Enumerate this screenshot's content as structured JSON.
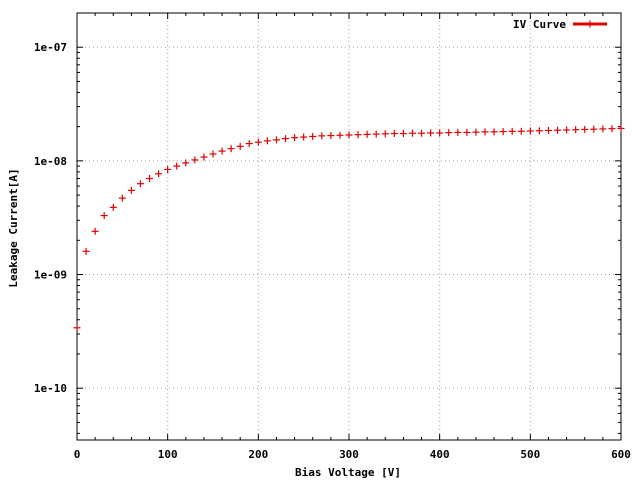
{
  "chart_data": {
    "type": "scatter",
    "title": "",
    "xlabel": "Bias Voltage [V]",
    "ylabel": "Leakage Current[A]",
    "xlim": [
      0,
      600
    ],
    "ylim": [
      3.5e-11,
      2e-07
    ],
    "yscale": "log",
    "grid": true,
    "legend_position": "top-right",
    "x_ticks": [
      0,
      100,
      200,
      300,
      400,
      500,
      600
    ],
    "x_tick_labels": [
      "0",
      "100",
      "200",
      "300",
      "400",
      "500",
      "600"
    ],
    "y_ticks": [
      1e-10,
      1e-09,
      1e-08,
      1e-07
    ],
    "y_tick_labels": [
      "1e-10",
      "1e-09",
      "1e-08",
      "1e-07"
    ],
    "series": [
      {
        "name": "IV Curve",
        "color": "#e00000",
        "marker": "plus",
        "x": [
          0,
          10,
          20,
          30,
          40,
          50,
          60,
          70,
          80,
          90,
          100,
          110,
          120,
          130,
          140,
          150,
          160,
          170,
          180,
          190,
          200,
          210,
          220,
          230,
          240,
          250,
          260,
          270,
          280,
          290,
          300,
          310,
          320,
          330,
          340,
          350,
          360,
          370,
          380,
          390,
          400,
          410,
          420,
          430,
          440,
          450,
          460,
          470,
          480,
          490,
          500,
          510,
          520,
          530,
          540,
          550,
          560,
          570,
          580,
          590,
          600
        ],
        "y": [
          3.4e-10,
          1.6e-09,
          2.4e-09,
          3.3e-09,
          3.9e-09,
          4.7e-09,
          5.5e-09,
          6.3e-09,
          7e-09,
          7.7e-09,
          8.4e-09,
          9e-09,
          9.6e-09,
          1.02e-08,
          1.08e-08,
          1.15e-08,
          1.22e-08,
          1.28e-08,
          1.34e-08,
          1.42e-08,
          1.46e-08,
          1.5e-08,
          1.53e-08,
          1.57e-08,
          1.6e-08,
          1.62e-08,
          1.64e-08,
          1.66e-08,
          1.67e-08,
          1.68e-08,
          1.69e-08,
          1.7e-08,
          1.71e-08,
          1.72e-08,
          1.73e-08,
          1.74e-08,
          1.74e-08,
          1.75e-08,
          1.75e-08,
          1.76e-08,
          1.76e-08,
          1.77e-08,
          1.78e-08,
          1.78e-08,
          1.79e-08,
          1.8e-08,
          1.8e-08,
          1.81e-08,
          1.82e-08,
          1.82e-08,
          1.83e-08,
          1.84e-08,
          1.85e-08,
          1.86e-08,
          1.87e-08,
          1.88e-08,
          1.89e-08,
          1.9e-08,
          1.91e-08,
          1.92e-08,
          1.93e-08
        ]
      }
    ]
  }
}
